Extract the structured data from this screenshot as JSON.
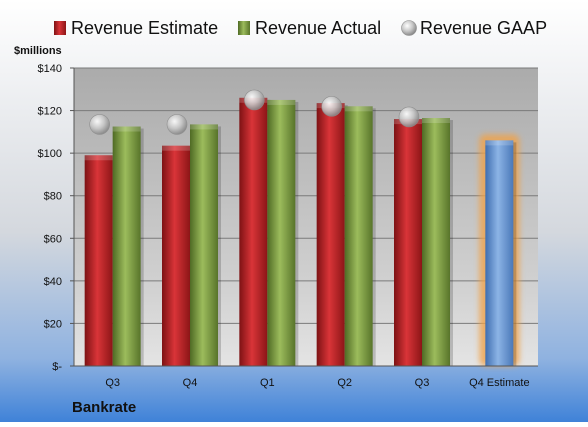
{
  "chart_data": {
    "type": "bar",
    "title": "Bankrate",
    "ylabel": "$millions",
    "xlabel": "",
    "categories": [
      "Q3",
      "Q4",
      "Q1",
      "Q2",
      "Q3",
      "Q4 Estimate"
    ],
    "ylim": [
      0,
      140
    ],
    "yticks": [
      0,
      20,
      40,
      60,
      80,
      100,
      120,
      140
    ],
    "ytick_labels": [
      "$-",
      "$20",
      "$40",
      "$60",
      "$80",
      "$100",
      "$120",
      "$140"
    ],
    "grid": true,
    "legend_position": "top",
    "series": [
      {
        "name": "Revenue Estimate",
        "kind": "bar",
        "color": "#c0282a",
        "values": [
          99,
          103.5,
          126,
          123.5,
          116,
          null
        ]
      },
      {
        "name": "Revenue Actual",
        "kind": "bar",
        "color": "#7fa043",
        "values": [
          112.5,
          113.5,
          125,
          122,
          116.5,
          null
        ]
      },
      {
        "name": "Revenue GAAP",
        "kind": "marker",
        "color": "#b8b8b8",
        "values": [
          113.5,
          113.5,
          125,
          122,
          117,
          null
        ]
      },
      {
        "name": "",
        "kind": "bar",
        "color": "#6a97d2",
        "highlight": "#f0a24a",
        "values": [
          null,
          null,
          null,
          null,
          null,
          106
        ]
      }
    ]
  }
}
